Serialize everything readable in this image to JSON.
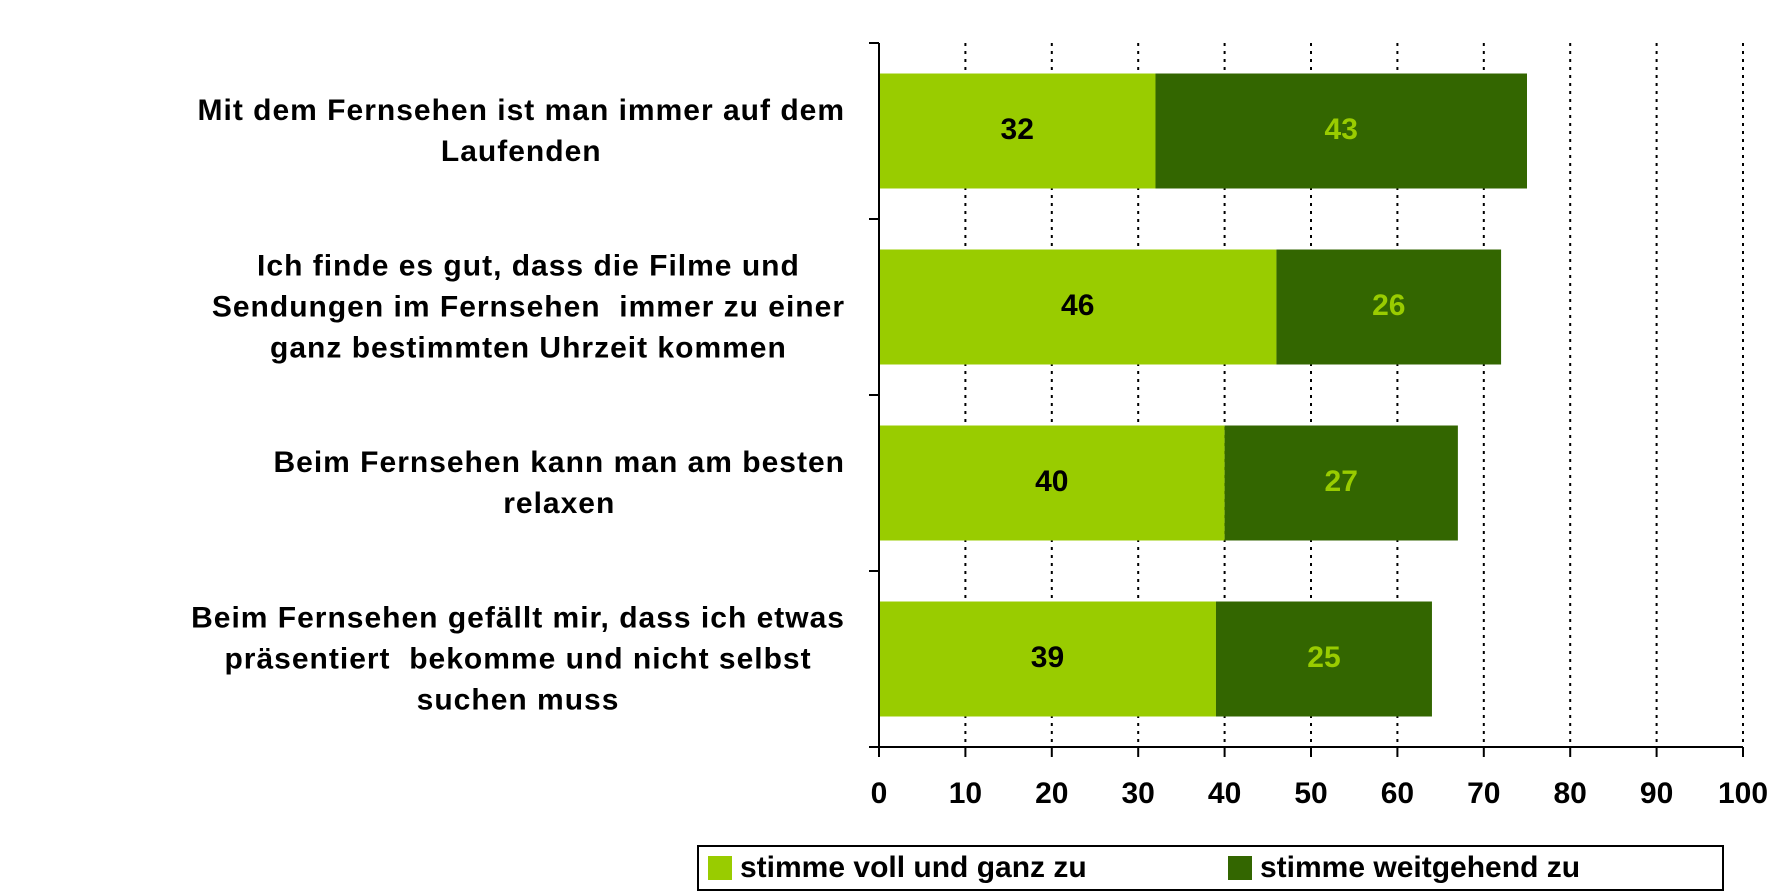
{
  "chart_data": {
    "type": "stacked_bar_horizontal",
    "categories": [
      "Mit dem Fernsehen ist man immer auf dem\nLaufenden",
      "Ich finde es gut, dass die Filme und\nSendungen im Fernsehen  immer zu einer\nganz bestimmten Uhrzeit kommen",
      "Beim Fernsehen kann man am besten\nrelaxen",
      "Beim Fernsehen gefällt mir, dass ich etwas\npräsentiert  bekomme und nicht selbst\nsuchen muss"
    ],
    "series": [
      {
        "name": "stimme voll und ganz zu",
        "color": "#99cc00",
        "label_color": "#000000",
        "values": [
          32,
          46,
          40,
          39
        ]
      },
      {
        "name": "stimme weitgehend zu",
        "color": "#336600",
        "label_color": "#99cc00",
        "values": [
          43,
          26,
          27,
          25
        ]
      }
    ],
    "xlim": [
      0,
      100
    ],
    "xticks": [
      0,
      10,
      20,
      30,
      40,
      50,
      60,
      70,
      80,
      90,
      100
    ],
    "grid": true,
    "legend": "bottom"
  }
}
